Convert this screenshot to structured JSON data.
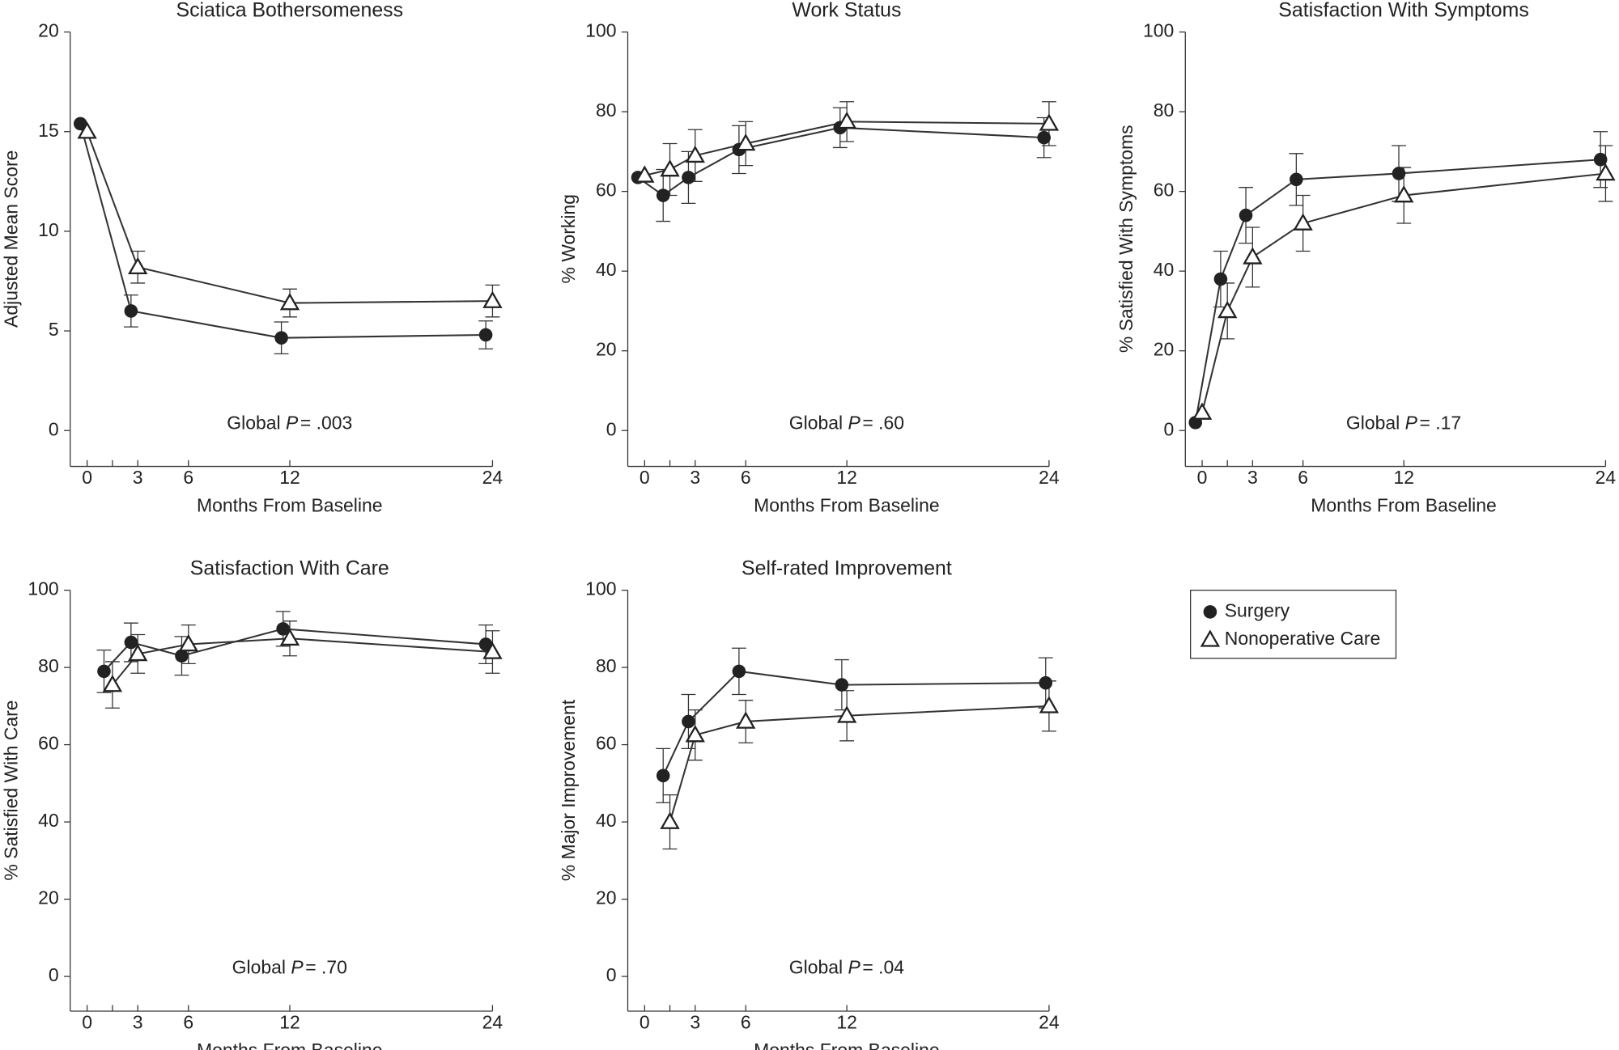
{
  "chart_data": [
    {
      "type": "line",
      "title": "Sciatica Bothersomeness",
      "xlabel": "Months From Baseline",
      "ylabel": "Adjusted Mean Score",
      "xlim": [
        -1,
        24
      ],
      "xticks": [
        0,
        {
          "value": 1.5,
          "label": null
        },
        3,
        6,
        12,
        24
      ],
      "ylim": [
        -1.8,
        20
      ],
      "yticks": [
        0,
        5,
        10,
        15,
        20
      ],
      "annotation": {
        "text": "Global",
        "symbol": "P",
        "value": "= .003"
      },
      "series": [
        {
          "name": "Surgery",
          "marker": "circle",
          "color": "#222222",
          "x": [
            -0.4,
            2.6,
            11.5,
            23.6
          ],
          "values": [
            15.4,
            6.0,
            4.65,
            4.8
          ],
          "errors": [
            null,
            0.8,
            0.8,
            0.7
          ]
        },
        {
          "name": "Nonoperative Care",
          "marker": "triangle",
          "color": "#222222",
          "x": [
            0,
            3,
            12,
            24
          ],
          "values": [
            15.0,
            8.2,
            6.4,
            6.5
          ],
          "errors": [
            null,
            0.8,
            0.7,
            0.8
          ]
        }
      ]
    },
    {
      "type": "line",
      "title": "Work Status",
      "xlabel": "Months From Baseline",
      "ylabel": "% Working",
      "xlim": [
        -1,
        24
      ],
      "xticks": [
        0,
        {
          "value": 1.5,
          "label": null
        },
        3,
        6,
        12,
        24
      ],
      "ylim": [
        -9,
        100
      ],
      "yticks": [
        0,
        20,
        40,
        60,
        80,
        100
      ],
      "annotation": {
        "text": "Global",
        "symbol": "P",
        "value": "= .60"
      },
      "series": [
        {
          "name": "Surgery",
          "marker": "circle",
          "color": "#222222",
          "x": [
            -0.4,
            1.1,
            2.6,
            5.6,
            11.6,
            23.7
          ],
          "values": [
            63.5,
            59,
            63.5,
            70.5,
            76,
            73.5
          ],
          "errors": [
            null,
            6.5,
            6.5,
            6,
            5,
            5
          ]
        },
        {
          "name": "Nonoperative Care",
          "marker": "triangle",
          "color": "#222222",
          "x": [
            0,
            1.5,
            3,
            6,
            12,
            24
          ],
          "values": [
            64,
            65.5,
            69,
            72,
            77.5,
            77
          ],
          "errors": [
            null,
            6.5,
            6.5,
            5.5,
            5,
            5.5
          ]
        }
      ]
    },
    {
      "type": "line",
      "title": "Satisfaction With Symptoms",
      "xlabel": "Months From Baseline",
      "ylabel": "% Satisfied With Symptoms",
      "xlim": [
        -1,
        24
      ],
      "xticks": [
        0,
        {
          "value": 1.5,
          "label": null
        },
        3,
        6,
        12,
        24
      ],
      "ylim": [
        -9,
        100
      ],
      "yticks": [
        0,
        20,
        40,
        60,
        80,
        100
      ],
      "annotation": {
        "text": "Global",
        "symbol": "P",
        "value": "= .17"
      },
      "series": [
        {
          "name": "Surgery",
          "marker": "circle",
          "color": "#222222",
          "x": [
            -0.4,
            1.1,
            2.6,
            5.6,
            11.7,
            23.7
          ],
          "values": [
            2,
            38,
            54,
            63,
            64.5,
            68
          ],
          "errors": [
            null,
            7,
            7,
            6.5,
            7,
            7
          ]
        },
        {
          "name": "Nonoperative Care",
          "marker": "triangle",
          "color": "#222222",
          "x": [
            0,
            1.5,
            3,
            6,
            12,
            24
          ],
          "values": [
            4.5,
            30,
            43.5,
            52,
            59,
            64.5
          ],
          "errors": [
            null,
            7,
            7.5,
            7,
            7,
            7
          ]
        }
      ]
    },
    {
      "type": "line",
      "title": "Satisfaction With Care",
      "xlabel": "Months From Baseline",
      "ylabel": "% Satisfied With Care",
      "xlim": [
        -1,
        24
      ],
      "xticks": [
        0,
        {
          "value": 1.5,
          "label": null
        },
        3,
        6,
        12,
        24
      ],
      "ylim": [
        -9,
        100
      ],
      "yticks": [
        0,
        20,
        40,
        60,
        80,
        100
      ],
      "annotation": {
        "text": "Global",
        "symbol": "P",
        "value": "= .70"
      },
      "series": [
        {
          "name": "Surgery",
          "marker": "circle",
          "color": "#222222",
          "x": [
            1.0,
            2.6,
            5.6,
            11.6,
            23.6
          ],
          "values": [
            79,
            86.5,
            83,
            90,
            86
          ],
          "errors": [
            5.5,
            5,
            5,
            4.5,
            5
          ]
        },
        {
          "name": "Nonoperative Care",
          "marker": "triangle",
          "color": "#222222",
          "x": [
            1.5,
            3,
            6,
            12,
            24
          ],
          "values": [
            75.5,
            83.5,
            86,
            87.5,
            84
          ],
          "errors": [
            6,
            5,
            5,
            4.5,
            5.5
          ]
        }
      ]
    },
    {
      "type": "line",
      "title": "Self-rated Improvement",
      "xlabel": "Months From Baseline",
      "ylabel": "% Major Improvement",
      "xlim": [
        -1,
        24
      ],
      "xticks": [
        0,
        {
          "value": 1.5,
          "label": null
        },
        3,
        6,
        12,
        24
      ],
      "ylim": [
        -9,
        100
      ],
      "yticks": [
        0,
        20,
        40,
        60,
        80,
        100
      ],
      "annotation": {
        "text": "Global",
        "symbol": "P",
        "value": "= .04"
      },
      "series": [
        {
          "name": "Surgery",
          "marker": "circle",
          "color": "#222222",
          "x": [
            1.1,
            2.6,
            5.6,
            11.7,
            23.8
          ],
          "values": [
            52,
            66,
            79,
            75.5,
            76
          ],
          "errors": [
            7,
            7,
            6,
            6.5,
            6.5
          ]
        },
        {
          "name": "Nonoperative Care",
          "marker": "triangle",
          "color": "#222222",
          "x": [
            1.5,
            3,
            6,
            12,
            24
          ],
          "values": [
            40,
            62.5,
            66,
            67.5,
            70
          ],
          "errors": [
            7,
            6.5,
            5.5,
            6.5,
            6.5
          ]
        }
      ]
    }
  ]
}
